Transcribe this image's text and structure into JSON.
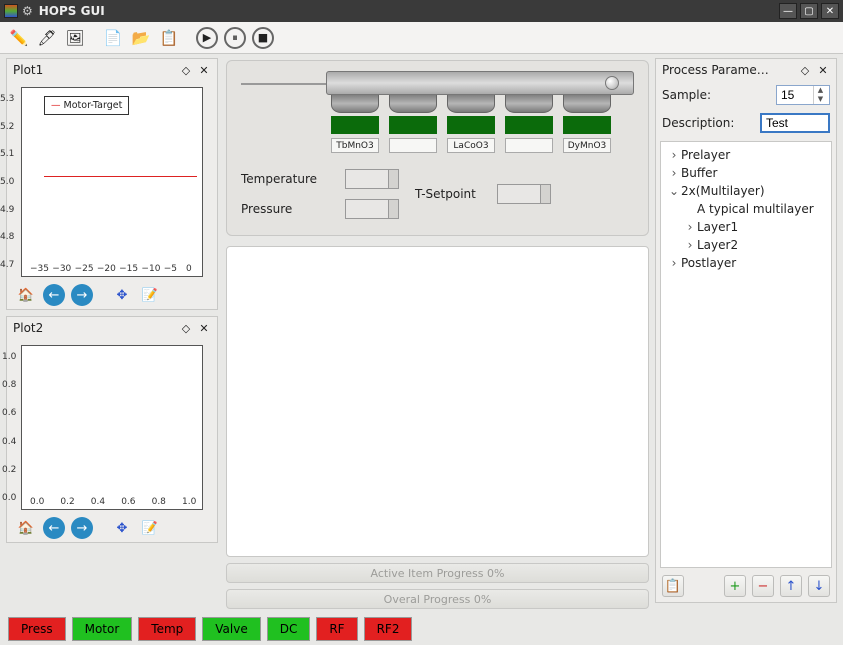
{
  "window": {
    "title": "HOPS GUI"
  },
  "toolbar_icons": [
    "✏️",
    "🖋",
    "🖼",
    "📄",
    "📂",
    "📋",
    "▶",
    "⏸",
    "⏹"
  ],
  "plot_panels": [
    {
      "title": "Plot1",
      "legend": "Motor-Target",
      "x_ticks": [
        "−35",
        "−30",
        "−25",
        "−20",
        "−15",
        "−10",
        "−5",
        "0"
      ],
      "y_ticks": [
        "4.7",
        "4.8",
        "4.9",
        "5.0",
        "5.1",
        "5.2",
        "5.3"
      ],
      "series": [
        {
          "name": "Motor-Target",
          "color": "#d22",
          "y": 5.0
        }
      ],
      "xlim": [
        -35,
        0
      ],
      "ylim": [
        4.7,
        5.3
      ],
      "background": "#ffffff",
      "border": "#333333",
      "fontsize": 9
    },
    {
      "title": "Plot2",
      "x_ticks": [
        "0.0",
        "0.2",
        "0.4",
        "0.6",
        "0.8",
        "1.0"
      ],
      "y_ticks": [
        "0.0",
        "0.2",
        "0.4",
        "0.6",
        "0.8",
        "1.0"
      ],
      "xlim": [
        0,
        1
      ],
      "ylim": [
        0,
        1
      ],
      "background": "#ffffff",
      "border": "#333333",
      "fontsize": 9
    }
  ],
  "plot_toolbar_icons": [
    "🏠",
    "←",
    "→",
    "✥",
    "📝"
  ],
  "targets": [
    {
      "label": "TbMnO3"
    },
    {
      "label": ""
    },
    {
      "label": "LaCoO3"
    },
    {
      "label": ""
    },
    {
      "label": "DyMnO3"
    }
  ],
  "readouts": {
    "temperature_label": "Temperature",
    "pressure_label": "Pressure",
    "tsetpoint_label": "T-Setpoint"
  },
  "progress": {
    "active": "Active Item Progress 0%",
    "overall": "Overal Progress 0%"
  },
  "process_panel": {
    "title": "Process Parame…",
    "sample_label": "Sample:",
    "sample_value": "15",
    "description_label": "Description:",
    "description_value": "Test",
    "tree": [
      {
        "label": "Prelayer",
        "indent": 0,
        "tw": ">"
      },
      {
        "label": "Buffer",
        "indent": 0,
        "tw": ">"
      },
      {
        "label": "2x(Multilayer)",
        "indent": 0,
        "tw": "v"
      },
      {
        "label": "A typical multilayer",
        "indent": 1,
        "tw": ""
      },
      {
        "label": "Layer1",
        "indent": 1,
        "tw": ">"
      },
      {
        "label": "Layer2",
        "indent": 1,
        "tw": ">"
      },
      {
        "label": "Postlayer",
        "indent": 0,
        "tw": ">"
      }
    ],
    "buttons": [
      "📋",
      "+",
      "−",
      "↑",
      "↓"
    ],
    "button_colors": [
      "#b58a3a",
      "#1a9a1a",
      "#cc2a2a",
      "#2a52cc",
      "#2a52cc"
    ]
  },
  "status": [
    {
      "label": "Press",
      "cls": "red"
    },
    {
      "label": "Motor",
      "cls": "green"
    },
    {
      "label": "Temp",
      "cls": "red"
    },
    {
      "label": "Valve",
      "cls": "green"
    },
    {
      "label": "DC",
      "cls": "green"
    },
    {
      "label": "RF",
      "cls": "red"
    },
    {
      "label": "RF2",
      "cls": "red"
    }
  ],
  "colors": {
    "panel_bg": "#eeedeb",
    "card_bg": "#e4e3e0",
    "border": "#c8c8c6",
    "green_target": "#0b6b0b",
    "red": "#e22020",
    "green_btn": "#20c020",
    "blue_icon": "#2a8ac2",
    "focus_border": "#3a78c4"
  }
}
